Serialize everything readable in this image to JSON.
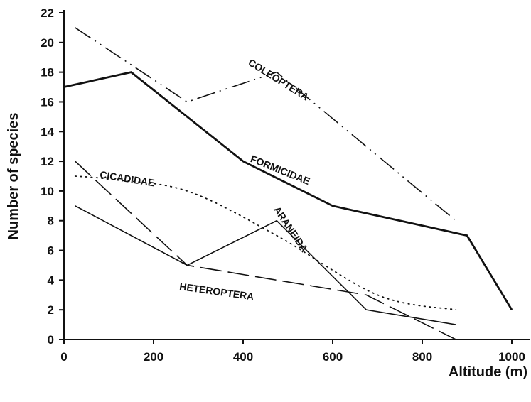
{
  "chart_data": {
    "type": "line",
    "xlabel": "Altitude (m)",
    "ylabel": "Number of species",
    "xlim": [
      0,
      1000
    ],
    "ylim": [
      0,
      22
    ],
    "xticks": [
      0,
      200,
      400,
      600,
      800,
      1000
    ],
    "yticks": [
      0,
      2,
      4,
      6,
      8,
      10,
      12,
      14,
      16,
      18,
      20,
      22
    ],
    "grid": false,
    "legend": "inline labels",
    "series": [
      {
        "name": "COLEOPTERA",
        "style": "dash-dot-dot",
        "color": "#111111",
        "x": [
          25,
          275,
          475,
          875
        ],
        "y": [
          21,
          16,
          18,
          8
        ]
      },
      {
        "name": "FORMICIDAE",
        "style": "solid-thick",
        "color": "#111111",
        "x": [
          0,
          150,
          400,
          600,
          900,
          1000
        ],
        "y": [
          17,
          18,
          12,
          9,
          7,
          2
        ]
      },
      {
        "name": "CICADIDAE",
        "style": "dotted",
        "color": "#111111",
        "x": [
          25,
          100,
          275,
          475,
          700,
          875
        ],
        "y": [
          11,
          10.8,
          10,
          7,
          3,
          2
        ]
      },
      {
        "name": "ARANEIDA",
        "style": "solid-thin",
        "color": "#111111",
        "x": [
          25,
          275,
          475,
          675,
          875
        ],
        "y": [
          9,
          5,
          8,
          2,
          1
        ]
      },
      {
        "name": "HETEROPTERA",
        "style": "long-dash",
        "color": "#111111",
        "x": [
          25,
          275,
          675,
          875
        ],
        "y": [
          12,
          5,
          3,
          0
        ]
      }
    ]
  }
}
